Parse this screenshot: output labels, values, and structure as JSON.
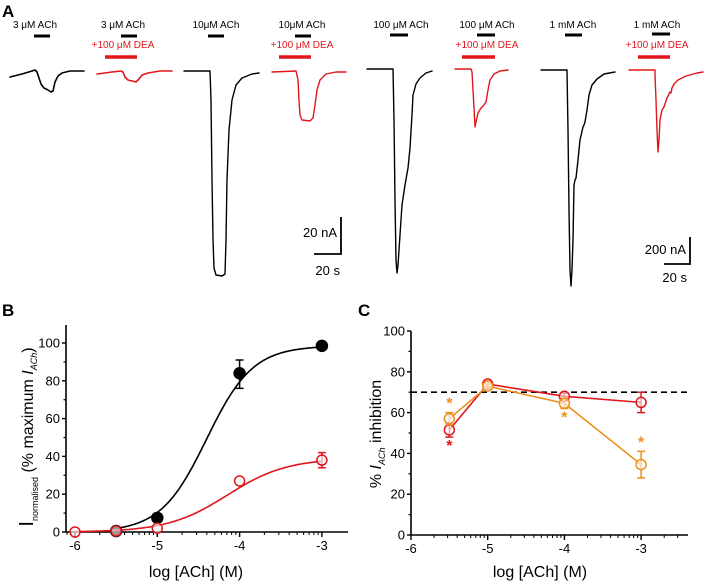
{
  "figure": {
    "panels": [
      "A",
      "B",
      "C"
    ]
  },
  "colors": {
    "control": "#000000",
    "dea": "#e0161c",
    "orange": "#ec8f1e",
    "dashed": "#000000"
  },
  "traces": {
    "items": [
      {
        "agonist": "3 μM ACh",
        "modulator": "",
        "color": "control"
      },
      {
        "agonist": "3 μM ACh",
        "modulator": "+100 μM DEA",
        "color": "dea"
      },
      {
        "agonist": "10μM ACh",
        "modulator": "",
        "color": "control"
      },
      {
        "agonist": "10μM ACh",
        "modulator": "+100 μM DEA",
        "color": "dea"
      },
      {
        "agonist": "100 μM ACh",
        "modulator": "",
        "color": "control"
      },
      {
        "agonist": "100 μM ACh",
        "modulator": "+100 μM DEA",
        "color": "dea"
      },
      {
        "agonist": "1 mM ACh",
        "modulator": "",
        "color": "control"
      },
      {
        "agonist": "1 mM ACh",
        "modulator": "+100 μM DEA",
        "color": "dea"
      }
    ],
    "scale_bars": [
      {
        "current": "20 nA",
        "time": "20 s"
      },
      {
        "current": "200 nA",
        "time": "20 s"
      }
    ]
  },
  "chart_data": [
    {
      "panel": "B",
      "type": "scatter",
      "title": "",
      "xlabel": "log [ACh] (M)",
      "ylabel_main": "I",
      "ylabel_sub": "normalised",
      "ylabel_rest": " (% maximum ",
      "ylabel_italic": "I",
      "ylabel_italic_sub": "ACh",
      "ylabel_close": ")",
      "xlim": [
        -6.1,
        -2.7
      ],
      "ylim": [
        0,
        110
      ],
      "xticks": [
        -6,
        -5,
        -4,
        -3
      ],
      "xtick_labels": [
        "-6",
        "-5",
        "-4",
        "-3"
      ],
      "yticks": [
        0,
        20,
        40,
        60,
        80,
        100
      ],
      "ytick_labels": [
        "0",
        "20",
        "40",
        "60",
        "80",
        "100"
      ],
      "grid": false,
      "series": [
        {
          "name": "ACh",
          "color": "control",
          "marker": "filled-circle",
          "x": [
            -5.5,
            -5,
            -4,
            -3
          ],
          "y": [
            0.5,
            7.5,
            84,
            98.5
          ],
          "err_low": [
            null,
            null,
            76,
            null
          ],
          "err_high": [
            null,
            null,
            91,
            null
          ],
          "fit": {
            "type": "hill",
            "bottom": 0,
            "top": 98.5,
            "log_ec50": -4.4,
            "hill": 1.55
          }
        },
        {
          "name": "ACh + 100 μM DEA",
          "color": "dea",
          "marker": "open-circle",
          "x": [
            -6,
            -5.5,
            -5,
            -4,
            -3
          ],
          "y": [
            0,
            0.5,
            2,
            27,
            38
          ],
          "err_low": [
            null,
            null,
            null,
            null,
            34
          ],
          "err_high": [
            null,
            null,
            null,
            null,
            42
          ],
          "fit": {
            "type": "hill",
            "bottom": 0,
            "top": 39,
            "log_ec50": -4.15,
            "hill": 1.2
          }
        }
      ]
    },
    {
      "panel": "C",
      "type": "line",
      "title": "",
      "xlabel": "log [ACh] (M)",
      "ylabel_prefix": "% ",
      "ylabel_italic": "I",
      "ylabel_italic_sub": "ACh",
      "ylabel_suffix": " inhibition",
      "xlim": [
        -6,
        -2.4
      ],
      "ylim": [
        0,
        100
      ],
      "xticks": [
        -6,
        -5,
        -4,
        -3
      ],
      "xtick_labels": [
        "-6",
        "-5",
        "-4",
        "-3"
      ],
      "yticks": [
        0,
        20,
        40,
        60,
        80,
        100
      ],
      "ytick_labels": [
        "0",
        "20",
        "40",
        "60",
        "80",
        "100"
      ],
      "grid": false,
      "reference_line": {
        "y": 70,
        "style": "dashed"
      },
      "series": [
        {
          "name": "red",
          "color": "dea",
          "marker": "open-circle",
          "x": [
            -5.5,
            -5,
            -4,
            -3
          ],
          "y": [
            51.5,
            74,
            68,
            65
          ],
          "err_low": [
            48,
            72.5,
            66.5,
            60
          ],
          "err_high": [
            55,
            75.5,
            69.5,
            70
          ],
          "significance": [
            {
              "x": -5.5,
              "label": "*",
              "position": "below"
            }
          ]
        },
        {
          "name": "orange",
          "color": "orange",
          "marker": "open-circle",
          "x": [
            -5.5,
            -5,
            -4,
            -3
          ],
          "y": [
            57,
            73,
            64.5,
            34.5
          ],
          "err_low": [
            54,
            72,
            62,
            28
          ],
          "err_high": [
            60,
            74,
            67,
            41
          ],
          "significance": [
            {
              "x": -5.5,
              "label": "*",
              "position": "above"
            },
            {
              "x": -4,
              "label": "*",
              "position": "below"
            },
            {
              "x": -3,
              "label": "*",
              "position": "above"
            }
          ]
        }
      ]
    }
  ]
}
